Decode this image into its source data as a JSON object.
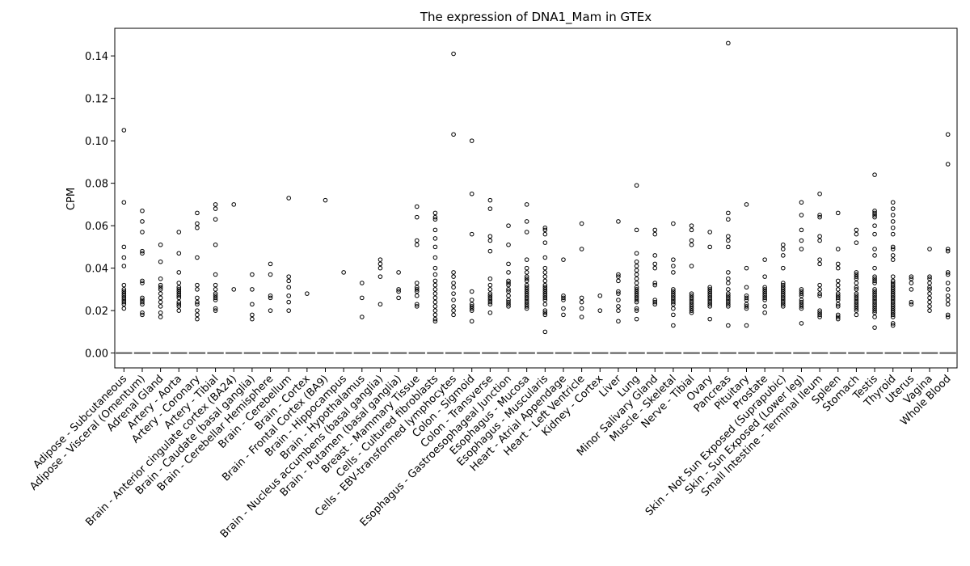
{
  "chart_data": {
    "type": "box",
    "title": "The expression of DNA1_Mam in GTEx",
    "xlabel": "",
    "ylabel": "CPM",
    "ylim": [
      -0.007,
      0.153
    ],
    "yticks": [
      "0.00",
      "0.02",
      "0.04",
      "0.06",
      "0.08",
      "0.10",
      "0.12",
      "0.14"
    ],
    "grid": false,
    "median_color": "#555555",
    "marker": "open-circle",
    "categories": [
      "Adipose - Subcutaneous",
      "Adipose - Visceral (Omentum)",
      "Adrenal Gland",
      "Artery - Aorta",
      "Artery - Coronary",
      "Artery - Tibial",
      "Brain - Anterior cingulate cortex (BA24)",
      "Brain - Caudate (basal ganglia)",
      "Brain - Cerebellar Hemisphere",
      "Brain - Cerebellum",
      "Brain - Cortex",
      "Brain - Frontal Cortex (BA9)",
      "Brain - Hippocampus",
      "Brain - Hypothalamus",
      "Brain - Nucleus accumbens (basal ganglia)",
      "Brain - Putamen (basal ganglia)",
      "Breast - Mammary Tissue",
      "Cells - Cultured fibroblasts",
      "Cells - EBV-transformed lymphocytes",
      "Colon - Sigmoid",
      "Colon - Transverse",
      "Esophagus - Gastroesophageal Junction",
      "Esophagus - Mucosa",
      "Esophagus - Muscularis",
      "Heart - Atrial Appendage",
      "Heart - Left Ventricle",
      "Kidney - Cortex",
      "Liver",
      "Lung",
      "Minor Salivary Gland",
      "Muscle - Skeletal",
      "Nerve - Tibial",
      "Ovary",
      "Pancreas",
      "Pituitary",
      "Prostate",
      "Skin - Not Sun Exposed (Suprapubic)",
      "Skin - Sun Exposed (Lower leg)",
      "Small Intestine - Terminal Ileum",
      "Spleen",
      "Stomach",
      "Testis",
      "Thyroid",
      "Uterus",
      "Vagina",
      "Whole Blood"
    ],
    "medians": [
      0,
      0,
      0,
      0,
      0,
      0,
      0,
      0,
      0,
      0,
      0,
      0,
      0,
      0,
      0,
      0,
      0,
      0,
      0,
      0,
      0,
      0,
      0,
      0,
      0,
      0,
      0,
      0,
      0,
      0,
      0,
      0,
      0,
      0,
      0,
      0,
      0,
      0,
      0,
      0,
      0,
      0,
      0,
      0,
      0,
      0
    ],
    "outliers": [
      [
        0.105,
        0.071,
        0.05,
        0.045,
        0.041,
        0.032,
        0.03,
        0.029,
        0.028,
        0.027,
        0.026,
        0.025,
        0.024,
        0.023,
        0.021
      ],
      [
        0.067,
        0.062,
        0.057,
        0.048,
        0.047,
        0.034,
        0.033,
        0.026,
        0.025,
        0.024,
        0.023,
        0.019,
        0.018
      ],
      [
        0.051,
        0.043,
        0.035,
        0.032,
        0.031,
        0.03,
        0.028,
        0.026,
        0.024,
        0.022,
        0.019,
        0.017
      ],
      [
        0.057,
        0.047,
        0.038,
        0.033,
        0.031,
        0.03,
        0.029,
        0.028,
        0.027,
        0.026,
        0.024,
        0.023,
        0.022,
        0.02
      ],
      [
        0.066,
        0.061,
        0.059,
        0.045,
        0.032,
        0.03,
        0.026,
        0.024,
        0.023,
        0.02,
        0.018,
        0.016
      ],
      [
        0.07,
        0.068,
        0.063,
        0.051,
        0.037,
        0.032,
        0.03,
        0.028,
        0.027,
        0.026,
        0.025,
        0.021,
        0.02
      ],
      [
        0.07,
        0.03
      ],
      [
        0.037,
        0.03,
        0.023,
        0.018,
        0.016
      ],
      [
        0.042,
        0.037,
        0.027,
        0.026,
        0.02
      ],
      [
        0.073,
        0.036,
        0.034,
        0.031,
        0.027,
        0.024,
        0.02
      ],
      [
        0.028
      ],
      [
        0.072
      ],
      [
        0.038
      ],
      [
        0.033,
        0.026,
        0.017
      ],
      [
        0.044,
        0.042,
        0.04,
        0.036,
        0.023
      ],
      [
        0.038,
        0.03,
        0.029,
        0.026
      ],
      [
        0.069,
        0.064,
        0.053,
        0.051,
        0.033,
        0.031,
        0.03,
        0.029,
        0.027,
        0.023,
        0.022
      ],
      [
        0.066,
        0.064,
        0.063,
        0.058,
        0.054,
        0.05,
        0.045,
        0.04,
        0.037,
        0.034,
        0.032,
        0.03,
        0.028,
        0.026,
        0.024,
        0.022,
        0.02,
        0.018,
        0.016,
        0.015
      ],
      [
        0.141,
        0.103,
        0.038,
        0.036,
        0.033,
        0.031,
        0.028,
        0.025,
        0.022,
        0.02,
        0.018
      ],
      [
        0.1,
        0.075,
        0.056,
        0.029,
        0.025,
        0.023,
        0.022,
        0.021,
        0.02,
        0.015
      ],
      [
        0.072,
        0.068,
        0.055,
        0.053,
        0.048,
        0.035,
        0.032,
        0.03,
        0.028,
        0.027,
        0.026,
        0.025,
        0.024,
        0.023,
        0.019
      ],
      [
        0.06,
        0.051,
        0.042,
        0.038,
        0.034,
        0.033,
        0.032,
        0.03,
        0.029,
        0.027,
        0.025,
        0.024,
        0.023,
        0.022
      ],
      [
        0.07,
        0.062,
        0.057,
        0.044,
        0.04,
        0.038,
        0.036,
        0.035,
        0.034,
        0.032,
        0.031,
        0.03,
        0.029,
        0.028,
        0.027,
        0.026,
        0.025,
        0.024,
        0.023,
        0.022,
        0.021
      ],
      [
        0.059,
        0.058,
        0.056,
        0.052,
        0.045,
        0.04,
        0.038,
        0.036,
        0.034,
        0.032,
        0.031,
        0.03,
        0.029,
        0.028,
        0.027,
        0.026,
        0.025,
        0.023,
        0.02,
        0.019,
        0.018,
        0.01
      ],
      [
        0.044,
        0.027,
        0.026,
        0.025,
        0.021,
        0.018
      ],
      [
        0.061,
        0.049,
        0.026,
        0.024,
        0.021,
        0.017
      ],
      [
        0.027,
        0.02
      ],
      [
        0.062,
        0.037,
        0.036,
        0.034,
        0.029,
        0.028,
        0.025,
        0.022,
        0.02,
        0.015
      ],
      [
        0.079,
        0.058,
        0.047,
        0.043,
        0.041,
        0.039,
        0.037,
        0.035,
        0.033,
        0.031,
        0.03,
        0.029,
        0.028,
        0.027,
        0.026,
        0.025,
        0.024,
        0.021,
        0.02,
        0.016
      ],
      [
        0.058,
        0.056,
        0.046,
        0.042,
        0.04,
        0.033,
        0.032,
        0.025,
        0.024,
        0.023
      ],
      [
        0.061,
        0.044,
        0.041,
        0.038,
        0.03,
        0.029,
        0.028,
        0.027,
        0.026,
        0.025,
        0.024,
        0.023,
        0.021,
        0.018,
        0.013
      ],
      [
        0.06,
        0.058,
        0.053,
        0.051,
        0.041,
        0.028,
        0.027,
        0.026,
        0.025,
        0.024,
        0.023,
        0.022,
        0.021,
        0.02,
        0.019
      ],
      [
        0.057,
        0.05,
        0.031,
        0.03,
        0.029,
        0.028,
        0.027,
        0.026,
        0.025,
        0.024,
        0.023,
        0.022,
        0.016
      ],
      [
        0.146,
        0.066,
        0.063,
        0.055,
        0.053,
        0.05,
        0.038,
        0.035,
        0.033,
        0.03,
        0.028,
        0.027,
        0.026,
        0.025,
        0.024,
        0.023,
        0.022,
        0.013
      ],
      [
        0.07,
        0.04,
        0.031,
        0.027,
        0.026,
        0.025,
        0.023,
        0.022,
        0.021,
        0.013
      ],
      [
        0.044,
        0.036,
        0.031,
        0.03,
        0.029,
        0.028,
        0.027,
        0.026,
        0.025,
        0.022,
        0.019
      ],
      [
        0.051,
        0.049,
        0.046,
        0.04,
        0.033,
        0.032,
        0.031,
        0.03,
        0.029,
        0.028,
        0.027,
        0.026,
        0.025,
        0.024,
        0.023,
        0.022
      ],
      [
        0.071,
        0.065,
        0.058,
        0.053,
        0.049,
        0.03,
        0.029,
        0.028,
        0.027,
        0.025,
        0.024,
        0.023,
        0.022,
        0.021,
        0.014
      ],
      [
        0.075,
        0.065,
        0.064,
        0.055,
        0.053,
        0.044,
        0.042,
        0.032,
        0.03,
        0.028,
        0.027,
        0.02,
        0.019,
        0.018,
        0.017
      ],
      [
        0.066,
        0.049,
        0.042,
        0.04,
        0.034,
        0.032,
        0.03,
        0.028,
        0.027,
        0.026,
        0.025,
        0.023,
        0.022,
        0.018,
        0.017,
        0.016
      ],
      [
        0.058,
        0.056,
        0.052,
        0.038,
        0.037,
        0.036,
        0.035,
        0.033,
        0.031,
        0.03,
        0.028,
        0.027,
        0.026,
        0.025,
        0.024,
        0.023,
        0.022,
        0.021,
        0.02,
        0.018
      ],
      [
        0.084,
        0.067,
        0.066,
        0.065,
        0.064,
        0.06,
        0.056,
        0.049,
        0.046,
        0.04,
        0.036,
        0.035,
        0.034,
        0.033,
        0.03,
        0.029,
        0.028,
        0.027,
        0.026,
        0.025,
        0.024,
        0.023,
        0.022,
        0.021,
        0.02,
        0.019,
        0.017,
        0.012
      ],
      [
        0.071,
        0.068,
        0.065,
        0.062,
        0.059,
        0.056,
        0.05,
        0.049,
        0.046,
        0.044,
        0.036,
        0.034,
        0.033,
        0.032,
        0.031,
        0.03,
        0.029,
        0.028,
        0.027,
        0.026,
        0.025,
        0.024,
        0.023,
        0.022,
        0.021,
        0.02,
        0.019,
        0.018,
        0.017,
        0.014,
        0.013
      ],
      [
        0.036,
        0.035,
        0.033,
        0.03,
        0.024,
        0.023
      ],
      [
        0.049,
        0.036,
        0.035,
        0.033,
        0.031,
        0.03,
        0.028,
        0.026,
        0.024,
        0.022,
        0.02
      ],
      [
        0.103,
        0.089,
        0.049,
        0.048,
        0.038,
        0.037,
        0.033,
        0.03,
        0.027,
        0.025,
        0.023,
        0.018,
        0.017
      ]
    ]
  }
}
